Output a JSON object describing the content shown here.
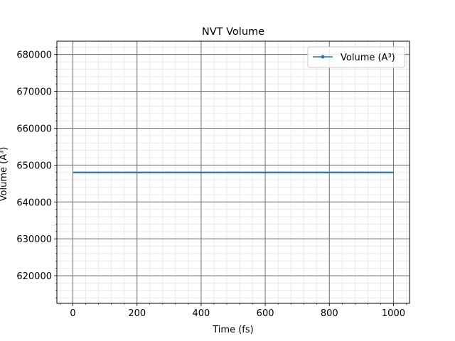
{
  "chart_data": {
    "type": "line",
    "title": "NVT Volume",
    "xlabel": "Time (fs)",
    "ylabel": "Volume (A³)",
    "xlim": [
      -50,
      1050
    ],
    "ylim": [
      612500,
      683600
    ],
    "x_ticks": [
      0,
      200,
      400,
      600,
      800,
      1000
    ],
    "x_tick_labels": [
      "0",
      "200",
      "400",
      "600",
      "800",
      "1000"
    ],
    "y_ticks": [
      620000,
      630000,
      640000,
      650000,
      660000,
      670000,
      680000
    ],
    "y_tick_labels": [
      "620000",
      "630000",
      "640000",
      "650000",
      "660000",
      "670000",
      "680000"
    ],
    "grid": "major and minor",
    "legend_position": "top-right",
    "series": [
      {
        "name": "Volume (A³)",
        "color": "#1f77b4",
        "marker": "point",
        "x": [
          0,
          100,
          200,
          300,
          400,
          500,
          600,
          700,
          800,
          900,
          1000
        ],
        "y": [
          648000,
          648000,
          648000,
          648000,
          648000,
          648000,
          648000,
          648000,
          648000,
          648000,
          648000
        ]
      }
    ]
  }
}
